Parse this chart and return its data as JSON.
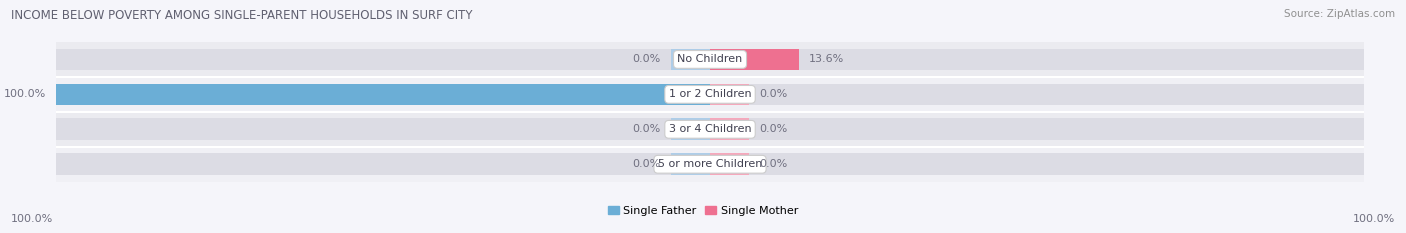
{
  "title": "INCOME BELOW POVERTY AMONG SINGLE-PARENT HOUSEHOLDS IN SURF CITY",
  "source": "Source: ZipAtlas.com",
  "categories": [
    "No Children",
    "1 or 2 Children",
    "3 or 4 Children",
    "5 or more Children"
  ],
  "single_father": [
    0.0,
    100.0,
    0.0,
    0.0
  ],
  "single_mother": [
    13.6,
    0.0,
    0.0,
    0.0
  ],
  "father_color": "#6BAED6",
  "mother_color": "#EE7090",
  "father_stub_color": "#AECDE8",
  "mother_stub_color": "#F5A8BC",
  "row_bg_odd": "#EBEBF0",
  "row_bg_even": "#F0F0F5",
  "background_color": "#F5F5FA",
  "title_color": "#606070",
  "text_color": "#707080",
  "source_color": "#909090",
  "max_val": 100.0,
  "stub_size": 6.0,
  "legend_father": "Single Father",
  "legend_mother": "Single Mother",
  "axis_label_left": "100.0%",
  "axis_label_right": "100.0%"
}
